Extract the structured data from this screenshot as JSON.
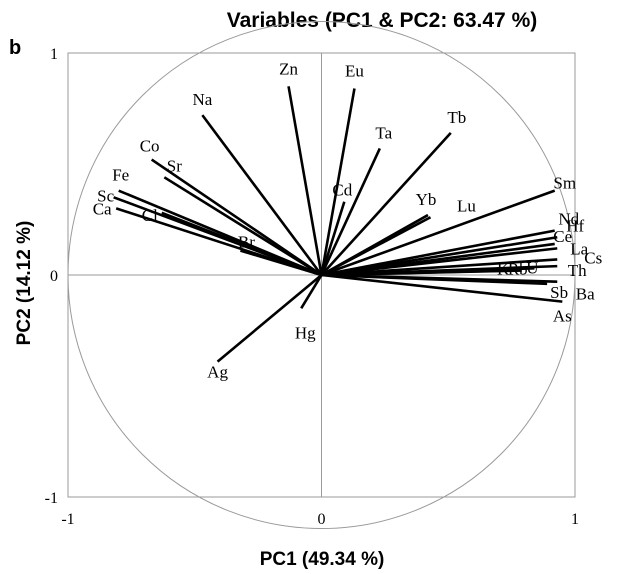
{
  "chart_data": {
    "type": "scatter",
    "panel_label": "b",
    "title": "Variables (PC1 & PC2: 63.47 %)",
    "xlabel": "PC1 (49.34 %)",
    "ylabel": "PC2 (14.12 %)",
    "xlim": [
      -1,
      1
    ],
    "ylim": [
      -1,
      1
    ],
    "x_ticks": [
      "-1",
      "0",
      "1"
    ],
    "y_ticks": [
      "1",
      "0",
      "-1"
    ],
    "grid": false,
    "unit_circle": true,
    "variables": [
      {
        "name": "Zn",
        "x": -0.13,
        "y": 0.85
      },
      {
        "name": "Eu",
        "x": 0.13,
        "y": 0.84
      },
      {
        "name": "Na",
        "x": -0.47,
        "y": 0.72
      },
      {
        "name": "Ta",
        "x": 0.23,
        "y": 0.57
      },
      {
        "name": "Tb",
        "x": 0.51,
        "y": 0.64
      },
      {
        "name": "Co",
        "x": -0.67,
        "y": 0.52
      },
      {
        "name": "Cd",
        "x": 0.09,
        "y": 0.33
      },
      {
        "name": "Fe",
        "x": -0.8,
        "y": 0.38
      },
      {
        "name": "Sr",
        "x": -0.62,
        "y": 0.44
      },
      {
        "name": "Sc",
        "x": -0.82,
        "y": 0.35
      },
      {
        "name": "Ca",
        "x": -0.81,
        "y": 0.3
      },
      {
        "name": "Cl",
        "x": -0.63,
        "y": 0.28
      },
      {
        "name": "Br",
        "x": -0.32,
        "y": 0.11
      },
      {
        "name": "Yb",
        "x": 0.42,
        "y": 0.27
      },
      {
        "name": "Lu",
        "x": 0.43,
        "y": 0.26
      },
      {
        "name": "Sm",
        "x": 0.92,
        "y": 0.38
      },
      {
        "name": "Nd",
        "x": 0.92,
        "y": 0.2
      },
      {
        "name": "Hf",
        "x": 0.93,
        "y": 0.17
      },
      {
        "name": "Ce",
        "x": 0.92,
        "y": 0.14
      },
      {
        "name": "La",
        "x": 0.93,
        "y": 0.12
      },
      {
        "name": "Cs",
        "x": 0.93,
        "y": 0.07
      },
      {
        "name": "Th",
        "x": 0.93,
        "y": 0.04
      },
      {
        "name": "U",
        "x": 0.84,
        "y": 0.03
      },
      {
        "name": "Rb",
        "x": 0.79,
        "y": 0.02
      },
      {
        "name": "K",
        "x": 0.74,
        "y": 0.02
      },
      {
        "name": "Ba",
        "x": 0.93,
        "y": -0.03
      },
      {
        "name": "Sb",
        "x": 0.89,
        "y": -0.04
      },
      {
        "name": "As",
        "x": 0.95,
        "y": -0.12
      },
      {
        "name": "Hg",
        "x": -0.08,
        "y": -0.15
      },
      {
        "name": "Ag",
        "x": -0.41,
        "y": -0.39
      }
    ]
  }
}
